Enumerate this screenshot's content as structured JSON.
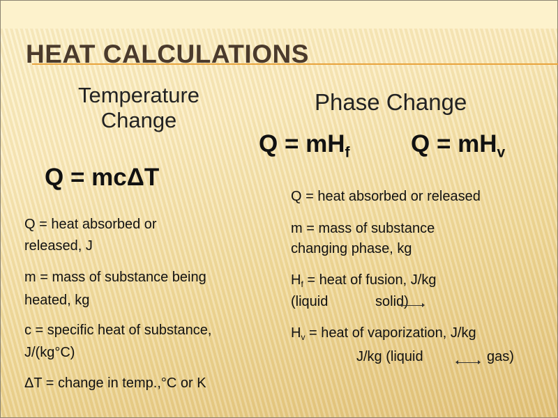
{
  "title": "HEAT CALCULATIONS",
  "left": {
    "heading_line1": "Temperature",
    "heading_line2": "Change",
    "equation": "Q = mcΔT",
    "definitions": [
      "Q = heat absorbed or",
      "released, J",
      "m = mass of substance being",
      "heated, kg",
      "c = specific heat of substance,",
      "J/(kg°C)",
      "ΔT = change in temp.,°C or K"
    ]
  },
  "right": {
    "heading": "Phase Change",
    "equation1_base": "Q = mH",
    "equation1_sub": "f",
    "equation2_base": "Q = mH",
    "equation2_sub": "v",
    "def_q": "Q = heat absorbed or released",
    "def_m1": "m = mass of substance",
    "def_m2": "changing phase, kg",
    "def_hf_sym": "H",
    "def_hf_sub": "f",
    "def_hf_text": " = heat of fusion, J/kg",
    "def_hf_phase_a": "(liquid",
    "def_hf_phase_b": "solid)",
    "def_hv_sym": "H",
    "def_hv_sub": "v",
    "def_hv_text": " = heat of vaporization, J/kg",
    "def_hv_line2_a": "J/kg  (liquid",
    "def_hv_line2_b": "gas)"
  },
  "colors": {
    "title": "#4a3a2c",
    "rule": "#e8a33c",
    "background": "#f0d99a"
  }
}
